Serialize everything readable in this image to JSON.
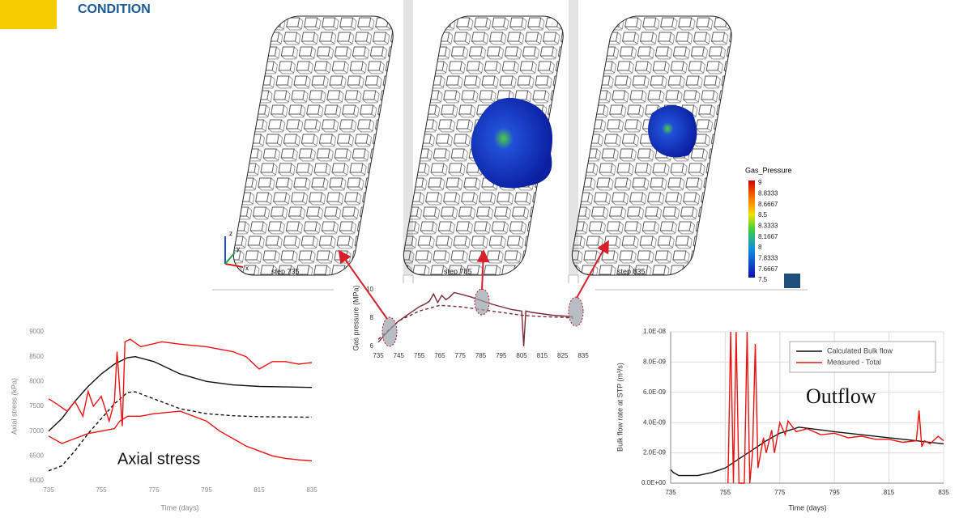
{
  "header": {
    "title": "CONDITION"
  },
  "panels": [
    {
      "label": "step 735"
    },
    {
      "label": "step 785"
    },
    {
      "label": "step 835"
    }
  ],
  "axes_triad": [
    "z",
    "y",
    "x"
  ],
  "colorbar": {
    "title": "Gas_Pressure",
    "labels": [
      9,
      8.8333,
      8.6667,
      8.5,
      8.3333,
      8.1667,
      8,
      7.8333,
      7.6667,
      7.5
    ]
  },
  "chart_data": [
    {
      "type": "line",
      "annotation": "Axial stress",
      "x_label": "Time (days)",
      "y_label": "Axial stress  (kPa)",
      "xlim": [
        735,
        835
      ],
      "xticks": [
        735,
        755,
        775,
        795,
        815,
        835
      ],
      "ylim": [
        6000,
        9000
      ],
      "yticks": [
        6000,
        6500,
        7000,
        7500,
        8000,
        8500,
        9000
      ],
      "grid": false,
      "series": [
        {
          "color": "#111111",
          "dash": false,
          "x": [
            735,
            740,
            745,
            750,
            755,
            760,
            765,
            768,
            775,
            785,
            795,
            805,
            815,
            825,
            835
          ],
          "values": [
            7000,
            7250,
            7600,
            7900,
            8150,
            8350,
            8480,
            8500,
            8400,
            8150,
            8000,
            7930,
            7900,
            7890,
            7880
          ]
        },
        {
          "color": "#111111",
          "dash": true,
          "x": [
            735,
            740,
            745,
            750,
            755,
            760,
            765,
            768,
            775,
            785,
            795,
            805,
            815,
            825,
            835
          ],
          "values": [
            6200,
            6300,
            6600,
            6950,
            7250,
            7550,
            7780,
            7790,
            7650,
            7450,
            7350,
            7310,
            7290,
            7285,
            7280
          ]
        },
        {
          "color": "#ee1111",
          "dash": false,
          "x": [
            735,
            738,
            742,
            745,
            748,
            750,
            752,
            755,
            758,
            760,
            761,
            763,
            764,
            766,
            770,
            778,
            785,
            795,
            805,
            810,
            815,
            820,
            825,
            830,
            835
          ],
          "values": [
            7650,
            7550,
            7400,
            7600,
            7300,
            7800,
            7500,
            7700,
            7200,
            7600,
            8600,
            7100,
            8800,
            8850,
            8700,
            8800,
            8750,
            8700,
            8600,
            8500,
            8250,
            8400,
            8400,
            8350,
            8380
          ]
        },
        {
          "color": "#ee1111",
          "dash": false,
          "x": [
            735,
            740,
            745,
            750,
            755,
            760,
            762,
            765,
            770,
            775,
            785,
            795,
            800,
            805,
            810,
            815,
            820,
            825,
            830,
            835
          ],
          "values": [
            6900,
            6750,
            6850,
            6950,
            7000,
            7050,
            7200,
            7300,
            7300,
            7350,
            7400,
            7200,
            7000,
            6850,
            6700,
            6600,
            6500,
            6450,
            6420,
            6400
          ]
        }
      ]
    },
    {
      "type": "line",
      "y_label": "Gas pressure (MPa)",
      "xlim": [
        735,
        835
      ],
      "xticks": [
        735,
        745,
        755,
        765,
        775,
        785,
        795,
        805,
        815,
        825,
        835
      ],
      "ylim": [
        6,
        10
      ],
      "yticks": [
        6,
        8,
        10
      ],
      "grid": false,
      "series": [
        {
          "color": "#7a2a35",
          "dash": false,
          "x": [
            735,
            740,
            745,
            750,
            755,
            758,
            760,
            762,
            764,
            766,
            768,
            770,
            772,
            775,
            780,
            790,
            800,
            805,
            806,
            807,
            810,
            820,
            830
          ],
          "values": [
            6.3,
            7.1,
            7.8,
            8.3,
            8.8,
            9.0,
            9.2,
            9.7,
            9.1,
            9.6,
            9.3,
            9.5,
            9.8,
            9.7,
            9.5,
            9.0,
            8.6,
            8.5,
            6.0,
            8.5,
            8.4,
            8.2,
            8.1
          ]
        },
        {
          "color": "#7a2a35",
          "dash": true,
          "x": [
            735,
            745,
            755,
            765,
            775,
            785,
            795,
            805,
            815,
            825,
            830
          ],
          "values": [
            6.5,
            7.8,
            8.5,
            8.9,
            8.8,
            8.6,
            8.4,
            8.2,
            8.1,
            8.05,
            8.0
          ]
        }
      ]
    },
    {
      "type": "line",
      "annotation": "Outflow",
      "x_label": "Time (days)",
      "y_label": "Bulk flow rate at STP (m³/s)",
      "xlim": [
        735,
        835
      ],
      "xticks": [
        735,
        755,
        775,
        795,
        815,
        835
      ],
      "ylim": [
        0,
        1e-08
      ],
      "yticks": [
        {
          "value": 0,
          "label": "0.0E+00"
        },
        {
          "value": 2e-09,
          "label": "2.0E-09"
        },
        {
          "value": 4e-09,
          "label": "4.0E-09"
        },
        {
          "value": 6e-09,
          "label": "6.0E-09"
        },
        {
          "value": 8e-09,
          "label": "8.0E-09"
        },
        {
          "value": 1e-08,
          "label": "1.0E-08"
        }
      ],
      "grid": true,
      "legend": "upper right",
      "series": [
        {
          "name": "Calculated Bulk flow",
          "color": "#111111",
          "dash": false,
          "x": [
            735,
            736,
            738,
            745,
            750,
            755,
            760,
            765,
            770,
            775,
            782,
            795,
            805,
            815,
            825,
            835
          ],
          "values": [
            9e-10,
            7e-10,
            5e-10,
            5e-10,
            7e-10,
            1e-09,
            1.6e-09,
            2.2e-09,
            2.8e-09,
            3.3e-09,
            3.7e-09,
            3.4e-09,
            3.2e-09,
            3e-09,
            2.8e-09,
            2.6e-09
          ]
        },
        {
          "name": "Measured - Total",
          "color": "#ee1111",
          "dash": false,
          "x": [
            756,
            757,
            758,
            759,
            760,
            762,
            763,
            764,
            765,
            766,
            767,
            769,
            770,
            772,
            773,
            775,
            777,
            778,
            781,
            785,
            790,
            795,
            800,
            805,
            810,
            815,
            820,
            825,
            826,
            827,
            828,
            830,
            833,
            835
          ],
          "values": [
            0,
            1e-08,
            0,
            1e-08,
            0,
            0,
            1e-08,
            0,
            2e-09,
            9.2e-09,
            1e-09,
            3e-09,
            2e-09,
            3.5e-09,
            2e-09,
            4e-09,
            3.2e-09,
            4.1e-09,
            3.4e-09,
            3.6e-09,
            3.2e-09,
            3.3e-09,
            3e-09,
            3.1e-09,
            2.9e-09,
            2.9e-09,
            2.7e-09,
            2.8e-09,
            4.8e-09,
            2.4e-09,
            2.8e-09,
            2.6e-09,
            3.1e-09,
            2.8e-09
          ]
        }
      ]
    }
  ]
}
